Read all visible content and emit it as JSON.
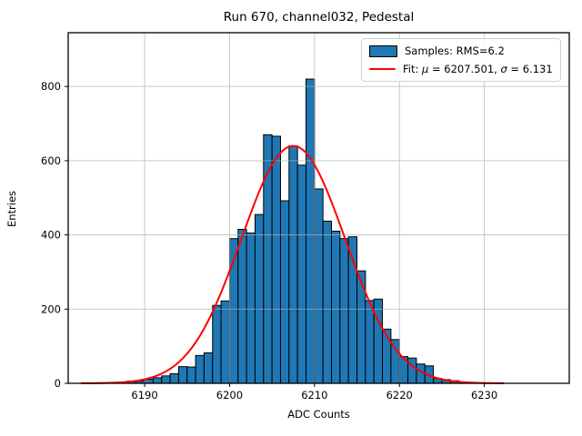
{
  "title": "Run 670, channel032, Pedestal",
  "legend": {
    "samples_label": "Samples: RMS=6.2",
    "fit_pre": "Fit: ",
    "fit_mu_symbol": "μ",
    "fit_mid": " = 6207.501, ",
    "fit_sigma_symbol": "σ",
    "fit_post": " = 6.131"
  },
  "chart_data": {
    "type": "bar",
    "subtype": "histogram",
    "title": "Run 670, channel032, Pedestal",
    "xlabel": "ADC Counts",
    "ylabel": "Entries",
    "xlim": [
      6181,
      6240
    ],
    "ylim": [
      0,
      945
    ],
    "x_ticks": [
      6190,
      6200,
      6210,
      6220,
      6230
    ],
    "y_ticks": [
      0,
      200,
      400,
      600,
      800
    ],
    "grid": true,
    "legend_position": "upper right",
    "legend_entries": [
      "Samples: RMS=6.2",
      "Fit: μ = 6207.501, σ = 6.131"
    ],
    "samples_rms": 6.2,
    "fit": {
      "shape": "gaussian",
      "mu": 6207.501,
      "sigma": 6.131,
      "amplitude": 640,
      "x_start": 6182.5,
      "x_end": 6232.3,
      "color": "#ff0000",
      "line_width": 2
    },
    "bin_width": 1,
    "bin_start": 6188,
    "categories": [
      6188,
      6189,
      6190,
      6191,
      6192,
      6193,
      6194,
      6195,
      6196,
      6197,
      6198,
      6199,
      6200,
      6201,
      6202,
      6203,
      6204,
      6205,
      6206,
      6207,
      6208,
      6209,
      6210,
      6211,
      6212,
      6213,
      6214,
      6215,
      6216,
      6217,
      6218,
      6219,
      6220,
      6221,
      6222,
      6223,
      6224,
      6225,
      6226,
      6227
    ],
    "values": [
      6,
      6,
      11,
      15,
      20,
      26,
      45,
      44,
      75,
      82,
      210,
      222,
      390,
      415,
      405,
      455,
      670,
      666,
      492,
      640,
      588,
      820,
      524,
      437,
      410,
      390,
      395,
      303,
      223,
      227,
      146,
      118,
      72,
      68,
      52,
      47,
      13,
      10,
      7,
      2
    ],
    "bar_color": "#1f77b4",
    "bar_edge_color": "#000000",
    "grid_color": "#b0b0b0",
    "frame_color": "#000000"
  }
}
